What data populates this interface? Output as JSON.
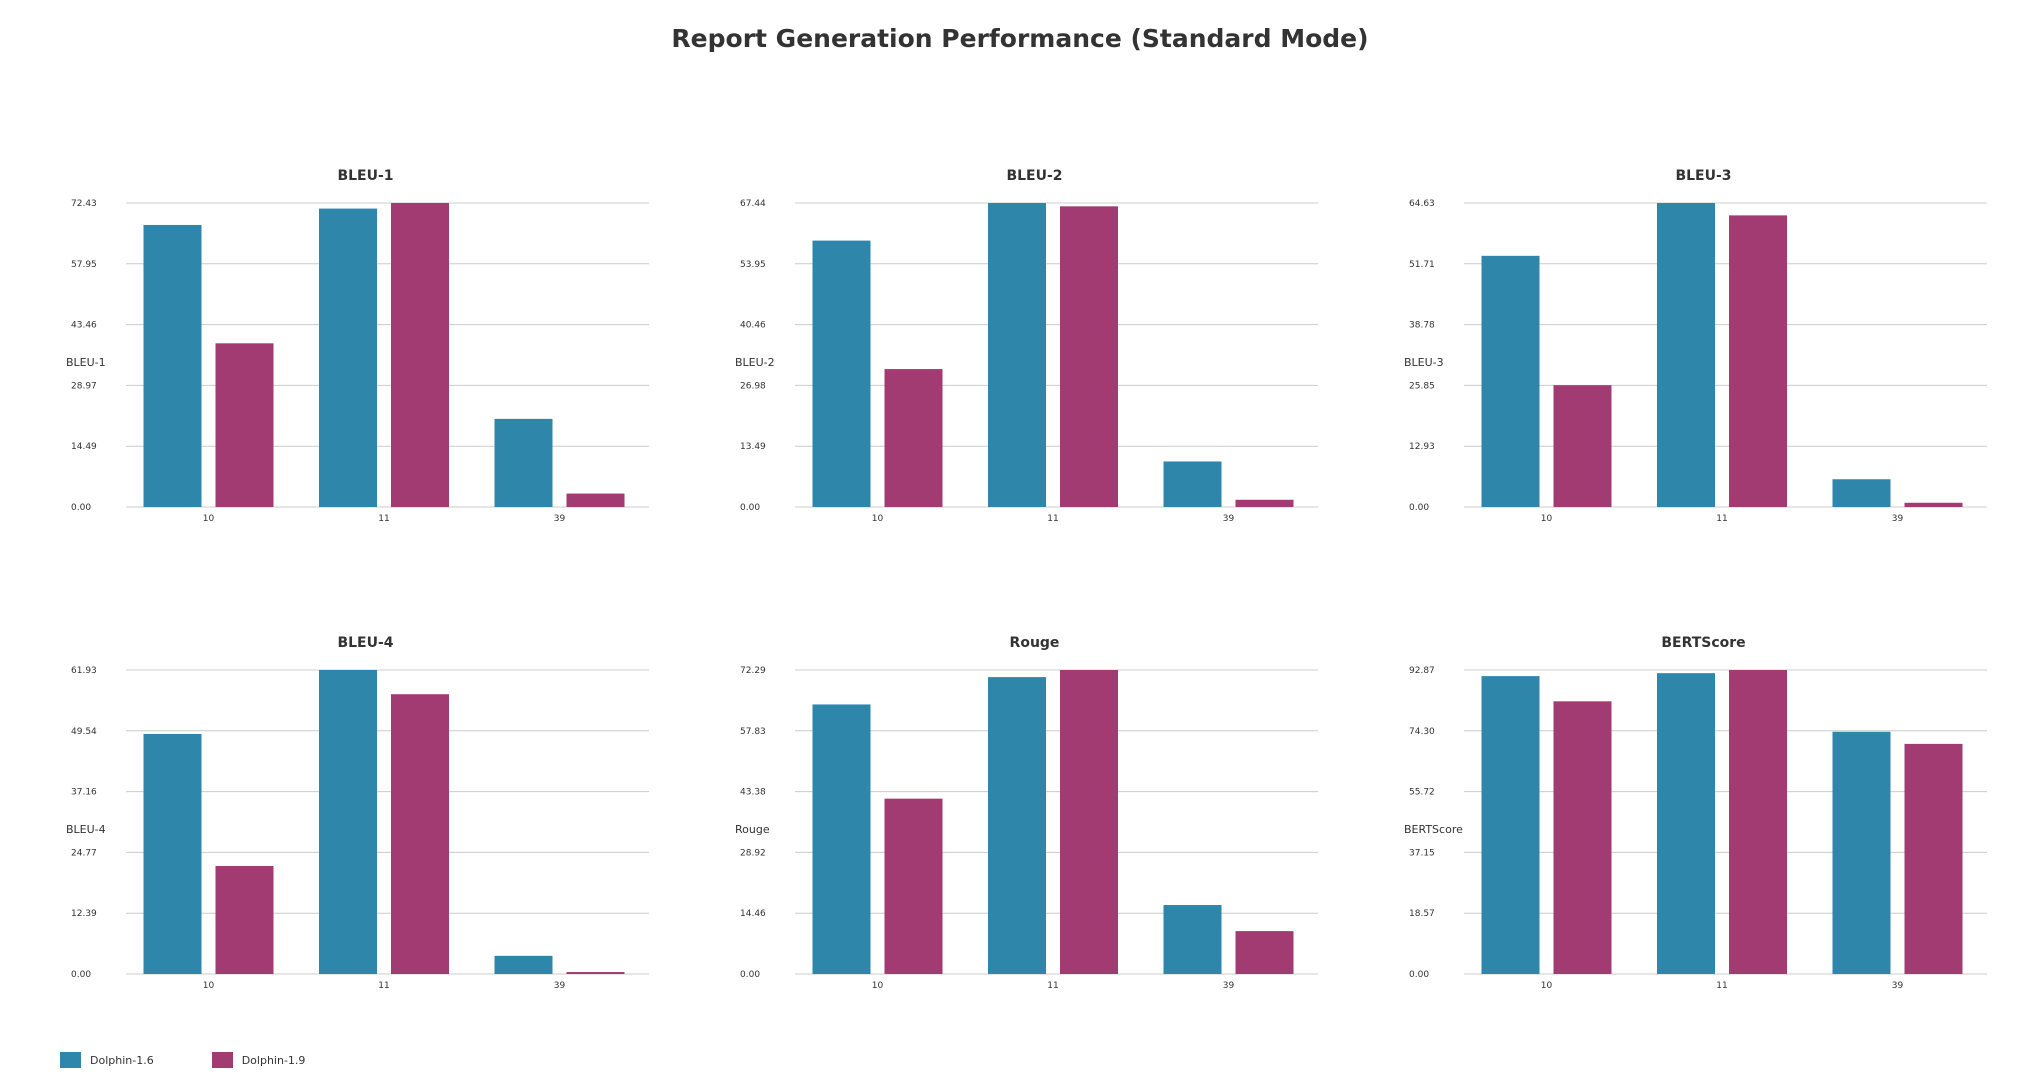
{
  "title": "Report Generation Performance (Standard Mode)",
  "colors": {
    "Dolphin-1.6": "#2e86ab",
    "Dolphin-1.9": "#a23b72"
  },
  "chart_data": [
    {
      "type": "bar",
      "title": "BLEU-1",
      "ylabel": "BLEU-1",
      "categories": [
        "10",
        "11",
        "39"
      ],
      "ylim": [
        0,
        72.43
      ],
      "yticks": [
        "0.00",
        "14.49",
        "28.97",
        "43.46",
        "57.95",
        "72.43"
      ],
      "series": [
        {
          "name": "Dolphin-1.6",
          "values": [
            67.2,
            71.1,
            21.0
          ]
        },
        {
          "name": "Dolphin-1.9",
          "values": [
            39.0,
            72.43,
            3.2
          ]
        }
      ]
    },
    {
      "type": "bar",
      "title": "BLEU-2",
      "ylabel": "BLEU-2",
      "categories": [
        "10",
        "11",
        "39"
      ],
      "ylim": [
        0,
        67.44
      ],
      "yticks": [
        "0.00",
        "13.49",
        "26.98",
        "40.46",
        "53.95",
        "67.44"
      ],
      "series": [
        {
          "name": "Dolphin-1.6",
          "values": [
            59.1,
            67.44,
            10.1
          ]
        },
        {
          "name": "Dolphin-1.9",
          "values": [
            30.6,
            66.7,
            1.6
          ]
        }
      ]
    },
    {
      "type": "bar",
      "title": "BLEU-3",
      "ylabel": "BLEU-3",
      "categories": [
        "10",
        "11",
        "39"
      ],
      "ylim": [
        0,
        64.63
      ],
      "yticks": [
        "0.00",
        "12.93",
        "25.85",
        "38.78",
        "51.71",
        "64.63"
      ],
      "series": [
        {
          "name": "Dolphin-1.6",
          "values": [
            53.4,
            64.63,
            5.9
          ]
        },
        {
          "name": "Dolphin-1.9",
          "values": [
            25.9,
            62.0,
            0.9
          ]
        }
      ]
    },
    {
      "type": "bar",
      "title": "BLEU-4",
      "ylabel": "BLEU-4",
      "categories": [
        "10",
        "11",
        "39"
      ],
      "ylim": [
        0,
        61.93
      ],
      "yticks": [
        "0.00",
        "12.39",
        "24.77",
        "37.16",
        "49.54",
        "61.93"
      ],
      "series": [
        {
          "name": "Dolphin-1.6",
          "values": [
            48.9,
            61.93,
            3.7
          ]
        },
        {
          "name": "Dolphin-1.9",
          "values": [
            22.0,
            57.0,
            0.4
          ]
        }
      ]
    },
    {
      "type": "bar",
      "title": "Rouge",
      "ylabel": "Rouge",
      "categories": [
        "10",
        "11",
        "39"
      ],
      "ylim": [
        0,
        72.29
      ],
      "yticks": [
        "0.00",
        "14.46",
        "28.92",
        "43.38",
        "57.83",
        "72.29"
      ],
      "series": [
        {
          "name": "Dolphin-1.6",
          "values": [
            64.1,
            70.6,
            16.4
          ]
        },
        {
          "name": "Dolphin-1.9",
          "values": [
            41.7,
            72.29,
            10.2
          ]
        }
      ]
    },
    {
      "type": "bar",
      "title": "BERTScore",
      "ylabel": "BERTScore",
      "categories": [
        "10",
        "11",
        "39"
      ],
      "ylim": [
        0,
        92.87
      ],
      "yticks": [
        "0.00",
        "18.57",
        "37.15",
        "55.72",
        "74.30",
        "92.87"
      ],
      "series": [
        {
          "name": "Dolphin-1.6",
          "values": [
            91.0,
            91.9,
            74.0
          ]
        },
        {
          "name": "Dolphin-1.9",
          "values": [
            83.3,
            92.87,
            70.3
          ]
        }
      ]
    }
  ],
  "legend": [
    {
      "label": "Dolphin-1.6",
      "color": "#2e86ab"
    },
    {
      "label": "Dolphin-1.9",
      "color": "#a23b72"
    }
  ]
}
